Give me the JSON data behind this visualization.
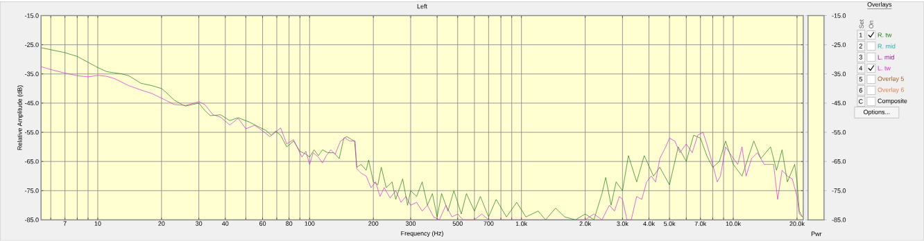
{
  "chart_data": {
    "type": "line",
    "title": "Left",
    "xlabel": "Frequency (Hz)",
    "ylabel": "Relative Amplitude (dB)",
    "legend_title": "Overlays",
    "log": "x",
    "grid": true,
    "legend": "right",
    "xlim": [
      5.4,
      21400
    ],
    "ylim": [
      -85,
      -15
    ],
    "y2lim": [
      -85,
      -15
    ],
    "xticks": [
      {
        "value": 6,
        "label": null
      },
      7,
      {
        "value": 8,
        "label": null
      },
      {
        "value": 9,
        "label": null
      },
      10,
      20,
      30,
      40,
      {
        "value": 50,
        "label": null
      },
      60,
      {
        "value": 70,
        "label": null
      },
      80,
      {
        "value": 90,
        "label": null
      },
      100,
      200,
      300,
      {
        "value": 400,
        "label": null
      },
      500,
      {
        "value": 600,
        "label": null
      },
      700,
      {
        "value": 800,
        "label": null
      },
      {
        "value": 900,
        "label": null
      },
      {
        "value": 1000,
        "label": "1.0k"
      },
      {
        "value": 2000,
        "label": "2.0k"
      },
      {
        "value": 3000,
        "label": "3.0k"
      },
      {
        "value": 4000,
        "label": "4.0k"
      },
      {
        "value": 5000,
        "label": "5.0k"
      },
      {
        "value": 6000,
        "label": null
      },
      {
        "value": 7000,
        "label": "7.0k"
      },
      {
        "value": 8000,
        "label": null
      },
      {
        "value": 9000,
        "label": null
      },
      {
        "value": 10000,
        "label": "10.0k"
      },
      {
        "value": 20000,
        "label": "20.0k"
      }
    ],
    "yticks": [
      {
        "value": -85,
        "label": "-85.0"
      },
      {
        "value": -75,
        "label": "-75.0"
      },
      {
        "value": -65,
        "label": "-65.0"
      },
      {
        "value": -55,
        "label": "-55.0"
      },
      {
        "value": -45,
        "label": "-45.0"
      },
      {
        "value": -35,
        "label": "-35.0"
      },
      {
        "value": -25,
        "label": "-25.0"
      },
      {
        "value": -15,
        "label": "-15.0"
      }
    ],
    "y2ticks": [
      {
        "value": -85,
        "label": "-85.0"
      },
      {
        "value": -75,
        "label": "-75.0"
      },
      {
        "value": -65,
        "label": "-65.0"
      },
      {
        "value": -55,
        "label": "-55.0"
      },
      {
        "value": -45,
        "label": "-45.0"
      },
      {
        "value": -35,
        "label": "-35.0"
      },
      {
        "value": -25,
        "label": "-25.0"
      },
      {
        "value": -15,
        "label": "-15.0"
      }
    ],
    "annotations": [
      "1",
      "2",
      "3",
      "4",
      "5",
      "6",
      "C",
      "R. mid",
      "L. mid",
      "Overlay 5",
      "Overlay 6",
      "Composite",
      "Set",
      "On",
      "Options...",
      "Pwr"
    ],
    "series": [
      {
        "name": "R. tw",
        "color": "#1a7a1a",
        "x": [
          5.4,
          6,
          7,
          8,
          9,
          10,
          11,
          13,
          14,
          16,
          18,
          20,
          21,
          23,
          25,
          26,
          28,
          30,
          32,
          34,
          38,
          42,
          46,
          52,
          57,
          62,
          66,
          69,
          73,
          78,
          84,
          90,
          96,
          100,
          105,
          110,
          115,
          122,
          130,
          138,
          145,
          150,
          158,
          163,
          167,
          175,
          185,
          190,
          200,
          210,
          218,
          230,
          245,
          255,
          275,
          290,
          300,
          320,
          340,
          360,
          380,
          400,
          420,
          450,
          480,
          520,
          550,
          600,
          640,
          700,
          760,
          850,
          950,
          1050,
          1200,
          1300,
          1450,
          1600,
          1800,
          2000,
          2200,
          2400,
          2500,
          2650,
          2800,
          3000,
          3200,
          3500,
          3800,
          4200,
          4500,
          5000,
          5500,
          6000,
          6500,
          7000,
          7500,
          8000,
          8600,
          9200,
          10000,
          11000,
          12500,
          13500,
          15000,
          16000,
          17000,
          18000,
          19500,
          20000,
          20500,
          21200
        ],
        "values": [
          -26,
          -26.7,
          -27.7,
          -29,
          -31,
          -32.8,
          -34.2,
          -35,
          -35.6,
          -38.2,
          -39,
          -40,
          -41.3,
          -44,
          -45.5,
          -46,
          -45.5,
          -45,
          -47.5,
          -49.3,
          -49,
          -51,
          -50,
          -51.5,
          -53,
          -54.3,
          -56,
          -54.6,
          -56,
          -60,
          -58,
          -61.5,
          -62.5,
          -63.5,
          -61,
          -63,
          -61,
          -62,
          -62,
          -64,
          -57,
          -56.5,
          -57.5,
          -58,
          -67,
          -66,
          -68,
          -64.5,
          -72,
          -73,
          -67,
          -74,
          -72,
          -78,
          -71,
          -80,
          -75,
          -77,
          -72,
          -80,
          -76,
          -84,
          -76,
          -82,
          -75,
          -83,
          -76,
          -82,
          -77,
          -84,
          -78,
          -84,
          -79,
          -84,
          -82,
          -85,
          -81,
          -84,
          -85,
          -83,
          -85,
          -76,
          -70.5,
          -80,
          -72,
          -75,
          -63,
          -72,
          -63,
          -70,
          -67,
          -73,
          -60,
          -65,
          -56,
          -57,
          -63,
          -67,
          -65,
          -58,
          -66,
          -70,
          -58,
          -64,
          -60,
          -68,
          -61,
          -72,
          -66,
          -72,
          -82,
          -84
        ]
      },
      {
        "name": "L. tw",
        "color": "#d42ad4",
        "x": [
          5.4,
          6,
          7,
          8,
          9,
          10,
          11,
          12,
          14,
          16,
          18,
          20,
          23,
          26,
          30,
          32,
          35,
          38,
          42,
          46,
          50,
          55,
          60,
          65,
          69,
          73,
          78,
          84,
          92,
          96,
          100,
          104,
          110,
          115,
          120,
          126,
          132,
          140,
          147,
          155,
          164,
          167,
          175,
          185,
          195,
          205,
          215,
          225,
          240,
          255,
          270,
          285,
          300,
          320,
          340,
          360,
          385,
          410,
          440,
          470,
          500,
          530,
          600,
          650,
          700,
          1000,
          1500,
          2000,
          2200,
          2400,
          2600,
          2750,
          2900,
          3000,
          3150,
          3300,
          3500,
          3700,
          3900,
          4100,
          4300,
          4500,
          4800,
          5000,
          5300,
          5600,
          6000,
          6400,
          6800,
          7200,
          7500,
          8000,
          8400,
          8700,
          9200,
          9800,
          10500,
          11000,
          11500,
          12200,
          13000,
          14000,
          15500,
          16200,
          17000,
          18000,
          19000,
          20000,
          20500,
          21200
        ],
        "values": [
          -32.5,
          -33.5,
          -34.7,
          -35.6,
          -36,
          -35.5,
          -35.8,
          -36.6,
          -39,
          -40.5,
          -41.7,
          -43.3,
          -45.5,
          -45.8,
          -44.5,
          -45.5,
          -49,
          -49.8,
          -52.5,
          -50.2,
          -53.8,
          -52.6,
          -54.5,
          -56.5,
          -55,
          -53.5,
          -59,
          -57.5,
          -63.5,
          -61.5,
          -66,
          -62,
          -63.5,
          -65.5,
          -63,
          -61,
          -62.5,
          -58,
          -57,
          -58,
          -58,
          -67.5,
          -69,
          -70,
          -74,
          -72,
          -77,
          -74,
          -77.5,
          -75,
          -79,
          -77,
          -80,
          -79,
          -82,
          -80,
          -84,
          -85,
          -80,
          -84,
          -83,
          -85,
          -85,
          -83,
          -85,
          null,
          null,
          -85,
          -83,
          -85,
          -80,
          -82,
          -77,
          -78,
          -85,
          -85,
          -77,
          -78,
          -72,
          -70,
          -72,
          -64,
          -60,
          -57,
          -58,
          -62,
          -59,
          -62,
          -56,
          -55,
          -59,
          -66,
          -72,
          -70,
          -60,
          -63,
          -66,
          -60,
          -70,
          -64,
          -62,
          -66,
          -66,
          -78,
          -68,
          -70,
          -71,
          -77,
          -83,
          -84
        ]
      }
    ]
  }
}
